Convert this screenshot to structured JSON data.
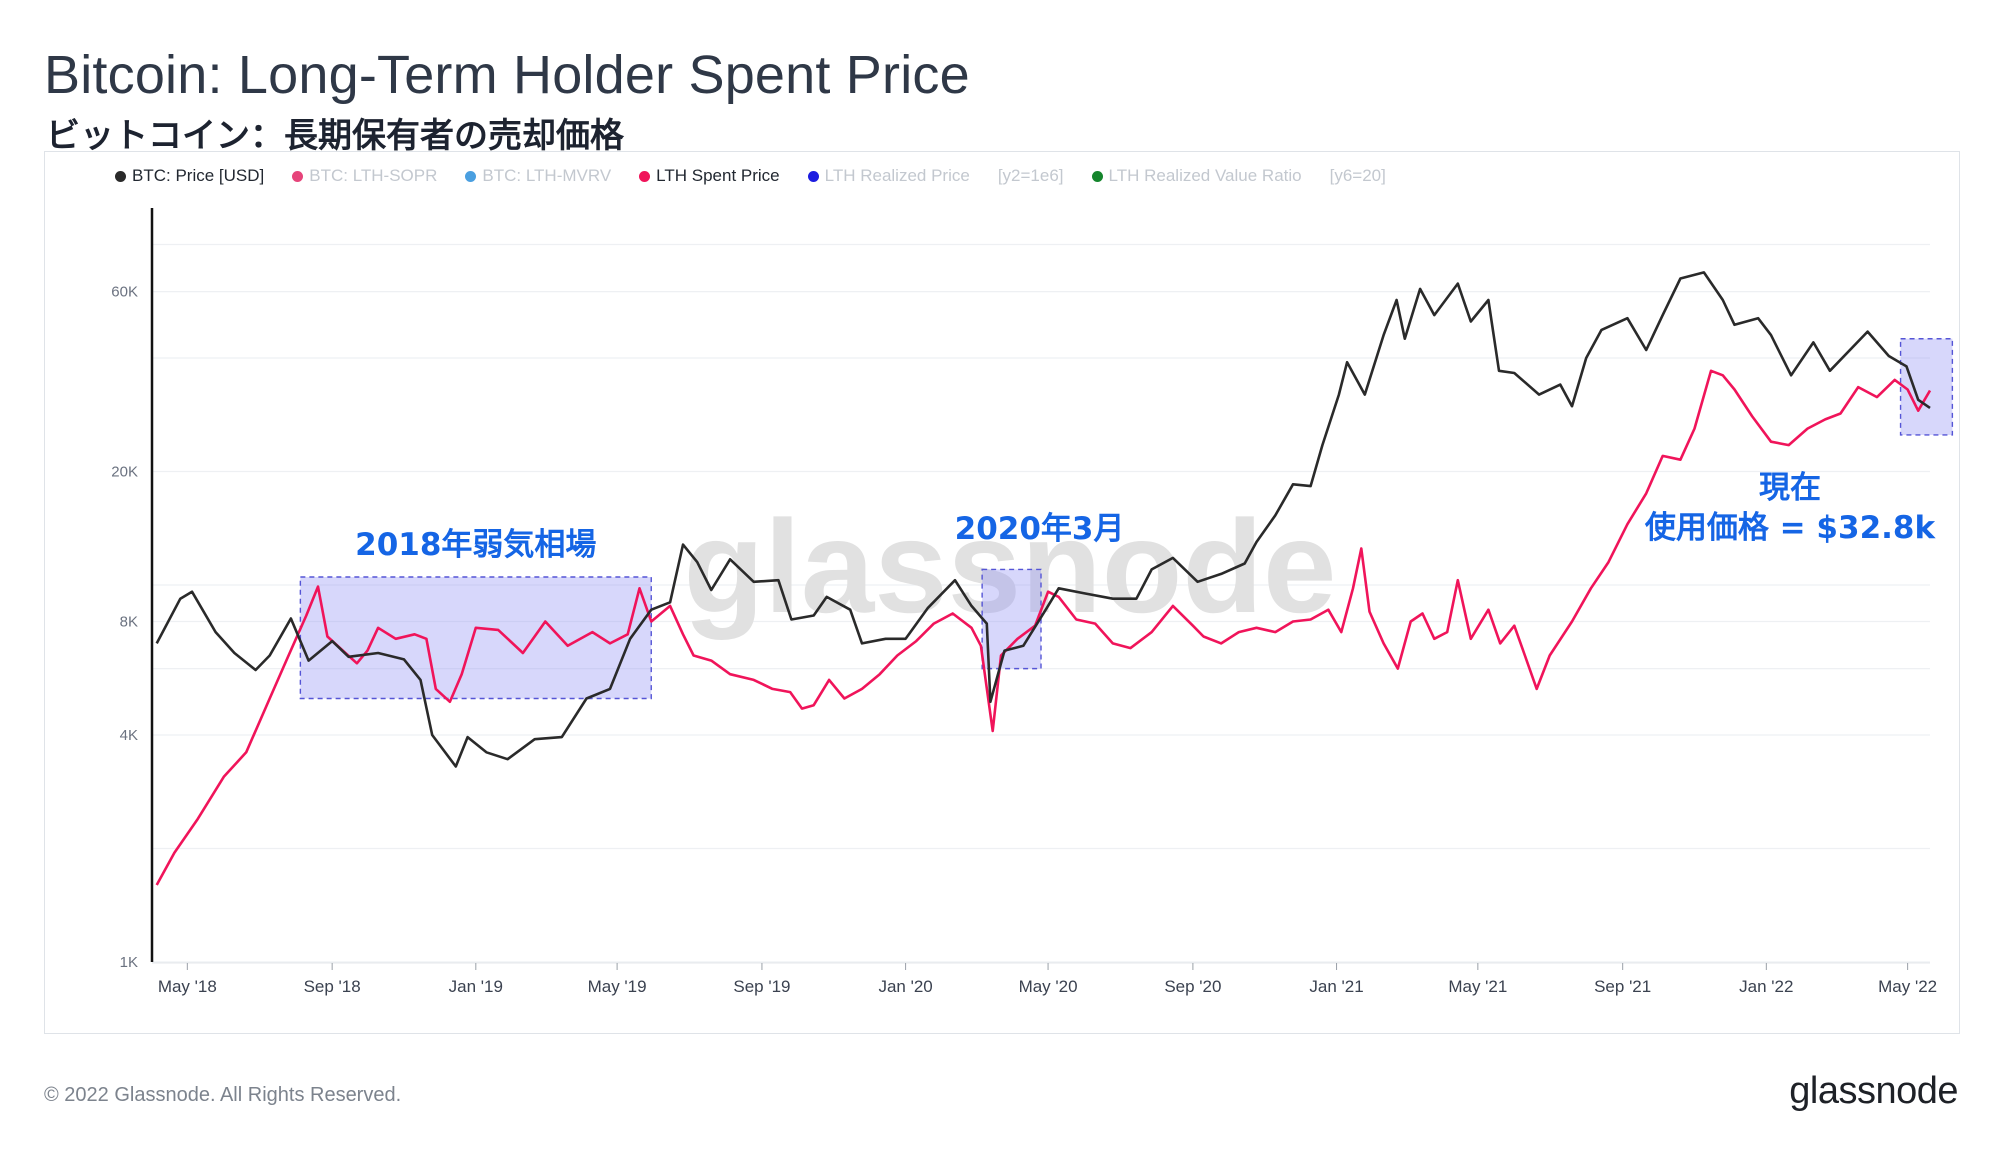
{
  "header": {
    "title": "Bitcoin: Long-Term Holder Spent Price",
    "subtitle": "ビットコイン：長期保有者の売却価格"
  },
  "legend": [
    {
      "label": "BTC: Price [USD]",
      "color": "#2a2a2a",
      "active": true
    },
    {
      "label": "BTC: LTH-SOPR",
      "color": "#e6447a",
      "active": false
    },
    {
      "label": "BTC: LTH-MVRV",
      "color": "#4a9fe0",
      "active": false
    },
    {
      "label": "LTH Spent Price",
      "color": "#f0145a",
      "active": true
    },
    {
      "label": "LTH Realized Price",
      "color": "#1c1ce0",
      "active": false
    },
    {
      "label": "[y2=1e6]",
      "extra": true
    },
    {
      "label": "LTH Realized Value Ratio",
      "color": "#14852c",
      "active": false
    },
    {
      "label": "[y6=20]",
      "extra": true
    }
  ],
  "annotations": {
    "bear_2018": "2018年弱気相場",
    "march_2020": "2020年3月",
    "current_line1": "現在",
    "current_line2": "使用価格 = $32.8k"
  },
  "watermark": "glassnode",
  "footer": {
    "copyright": "© 2022 Glassnode. All Rights Reserved.",
    "brand": "glassnode"
  },
  "chart_data": {
    "type": "line",
    "title": "Bitcoin: Long-Term Holder Spent Price",
    "y_scale": "log",
    "ylim": [
      1000,
      100000
    ],
    "y_ticks": [
      {
        "value": 1000,
        "label": "1K"
      },
      {
        "value": 4000,
        "label": "4K"
      },
      {
        "value": 8000,
        "label": "8K"
      },
      {
        "value": 20000,
        "label": "20K"
      },
      {
        "value": 60000,
        "label": "60K"
      }
    ],
    "x_range": [
      "2018-04-01",
      "2022-05-20"
    ],
    "x_ticks": [
      {
        "date": "2018-05-01",
        "label": "May '18"
      },
      {
        "date": "2018-09-01",
        "label": "Sep '18"
      },
      {
        "date": "2019-01-01",
        "label": "Jan '19"
      },
      {
        "date": "2019-05-01",
        "label": "May '19"
      },
      {
        "date": "2019-09-01",
        "label": "Sep '19"
      },
      {
        "date": "2020-01-01",
        "label": "Jan '20"
      },
      {
        "date": "2020-05-01",
        "label": "May '20"
      },
      {
        "date": "2020-09-01",
        "label": "Sep '20"
      },
      {
        "date": "2021-01-01",
        "label": "Jan '21"
      },
      {
        "date": "2021-05-01",
        "label": "May '21"
      },
      {
        "date": "2021-09-01",
        "label": "Sep '21"
      },
      {
        "date": "2022-01-01",
        "label": "Jan '22"
      },
      {
        "date": "2022-05-01",
        "label": "May '22"
      }
    ],
    "grid": true,
    "legend_position": "top-left",
    "series": [
      {
        "name": "BTC: Price [USD]",
        "color": "#2a2a2a",
        "points": [
          [
            "2018-04-05",
            7000
          ],
          [
            "2018-04-25",
            9200
          ],
          [
            "2018-05-05",
            9600
          ],
          [
            "2018-05-25",
            7500
          ],
          [
            "2018-06-10",
            6600
          ],
          [
            "2018-06-28",
            5950
          ],
          [
            "2018-07-10",
            6500
          ],
          [
            "2018-07-28",
            8150
          ],
          [
            "2018-08-12",
            6300
          ],
          [
            "2018-09-01",
            7100
          ],
          [
            "2018-09-15",
            6450
          ],
          [
            "2018-10-10",
            6600
          ],
          [
            "2018-11-01",
            6350
          ],
          [
            "2018-11-15",
            5600
          ],
          [
            "2018-11-25",
            4000
          ],
          [
            "2018-12-15",
            3300
          ],
          [
            "2018-12-25",
            3950
          ],
          [
            "2019-01-10",
            3600
          ],
          [
            "2019-01-28",
            3450
          ],
          [
            "2019-02-20",
            3900
          ],
          [
            "2019-03-15",
            3950
          ],
          [
            "2019-04-05",
            5000
          ],
          [
            "2019-04-25",
            5300
          ],
          [
            "2019-05-12",
            7200
          ],
          [
            "2019-05-30",
            8600
          ],
          [
            "2019-06-15",
            9000
          ],
          [
            "2019-06-26",
            12800
          ],
          [
            "2019-07-08",
            11500
          ],
          [
            "2019-07-20",
            9700
          ],
          [
            "2019-08-05",
            11700
          ],
          [
            "2019-08-25",
            10200
          ],
          [
            "2019-09-15",
            10300
          ],
          [
            "2019-09-26",
            8100
          ],
          [
            "2019-10-15",
            8300
          ],
          [
            "2019-10-26",
            9300
          ],
          [
            "2019-11-15",
            8600
          ],
          [
            "2019-11-25",
            7000
          ],
          [
            "2019-12-15",
            7200
          ],
          [
            "2020-01-01",
            7200
          ],
          [
            "2020-01-20",
            8700
          ],
          [
            "2020-02-12",
            10300
          ],
          [
            "2020-02-26",
            8800
          ],
          [
            "2020-03-10",
            7900
          ],
          [
            "2020-03-13",
            4900
          ],
          [
            "2020-03-25",
            6700
          ],
          [
            "2020-04-10",
            6900
          ],
          [
            "2020-04-30",
            8700
          ],
          [
            "2020-05-10",
            9800
          ],
          [
            "2020-06-01",
            9500
          ],
          [
            "2020-06-25",
            9200
          ],
          [
            "2020-07-15",
            9200
          ],
          [
            "2020-07-28",
            11000
          ],
          [
            "2020-08-15",
            11800
          ],
          [
            "2020-09-05",
            10200
          ],
          [
            "2020-09-25",
            10700
          ],
          [
            "2020-10-15",
            11400
          ],
          [
            "2020-10-25",
            13000
          ],
          [
            "2020-11-10",
            15300
          ],
          [
            "2020-11-25",
            18500
          ],
          [
            "2020-12-10",
            18300
          ],
          [
            "2020-12-20",
            23500
          ],
          [
            "2021-01-03",
            32000
          ],
          [
            "2021-01-10",
            39000
          ],
          [
            "2021-01-25",
            32000
          ],
          [
            "2021-02-10",
            46000
          ],
          [
            "2021-02-21",
            57000
          ],
          [
            "2021-02-28",
            45000
          ],
          [
            "2021-03-13",
            61000
          ],
          [
            "2021-03-25",
            52000
          ],
          [
            "2021-04-14",
            63000
          ],
          [
            "2021-04-25",
            50000
          ],
          [
            "2021-05-10",
            57000
          ],
          [
            "2021-05-19",
            37000
          ],
          [
            "2021-06-01",
            36500
          ],
          [
            "2021-06-22",
            32000
          ],
          [
            "2021-07-10",
            34000
          ],
          [
            "2021-07-20",
            29800
          ],
          [
            "2021-08-01",
            40000
          ],
          [
            "2021-08-14",
            47500
          ],
          [
            "2021-09-05",
            51000
          ],
          [
            "2021-09-21",
            42000
          ],
          [
            "2021-10-05",
            52000
          ],
          [
            "2021-10-20",
            65000
          ],
          [
            "2021-11-09",
            67500
          ],
          [
            "2021-11-25",
            57000
          ],
          [
            "2021-12-05",
            49000
          ],
          [
            "2021-12-25",
            51000
          ],
          [
            "2022-01-05",
            46000
          ],
          [
            "2022-01-22",
            36000
          ],
          [
            "2022-02-10",
            44000
          ],
          [
            "2022-02-24",
            37000
          ],
          [
            "2022-03-28",
            47000
          ],
          [
            "2022-04-15",
            40500
          ],
          [
            "2022-04-30",
            38000
          ],
          [
            "2022-05-10",
            31000
          ],
          [
            "2022-05-20",
            29500
          ]
        ]
      },
      {
        "name": "LTH Spent Price",
        "color": "#f0145a",
        "points": [
          [
            "2018-04-05",
            1600
          ],
          [
            "2018-04-20",
            1950
          ],
          [
            "2018-05-10",
            2400
          ],
          [
            "2018-06-01",
            3100
          ],
          [
            "2018-06-20",
            3600
          ],
          [
            "2018-07-10",
            5000
          ],
          [
            "2018-07-25",
            6400
          ],
          [
            "2018-08-10",
            8300
          ],
          [
            "2018-08-20",
            9900
          ],
          [
            "2018-08-28",
            7300
          ],
          [
            "2018-09-10",
            6700
          ],
          [
            "2018-09-22",
            6200
          ],
          [
            "2018-10-01",
            6700
          ],
          [
            "2018-10-10",
            7700
          ],
          [
            "2018-10-25",
            7200
          ],
          [
            "2018-11-10",
            7400
          ],
          [
            "2018-11-20",
            7200
          ],
          [
            "2018-11-28",
            5300
          ],
          [
            "2018-12-10",
            4900
          ],
          [
            "2018-12-20",
            5800
          ],
          [
            "2019-01-01",
            7700
          ],
          [
            "2019-01-20",
            7600
          ],
          [
            "2019-02-10",
            6600
          ],
          [
            "2019-03-01",
            8000
          ],
          [
            "2019-03-20",
            6900
          ],
          [
            "2019-04-10",
            7500
          ],
          [
            "2019-04-25",
            7000
          ],
          [
            "2019-05-10",
            7400
          ],
          [
            "2019-05-20",
            9800
          ],
          [
            "2019-05-30",
            8000
          ],
          [
            "2019-06-15",
            8800
          ],
          [
            "2019-06-26",
            7400
          ],
          [
            "2019-07-05",
            6500
          ],
          [
            "2019-07-20",
            6300
          ],
          [
            "2019-08-05",
            5800
          ],
          [
            "2019-08-25",
            5600
          ],
          [
            "2019-09-10",
            5300
          ],
          [
            "2019-09-25",
            5200
          ],
          [
            "2019-10-05",
            4700
          ],
          [
            "2019-10-15",
            4800
          ],
          [
            "2019-10-28",
            5600
          ],
          [
            "2019-11-10",
            5000
          ],
          [
            "2019-11-25",
            5300
          ],
          [
            "2019-12-10",
            5800
          ],
          [
            "2019-12-25",
            6500
          ],
          [
            "2020-01-10",
            7100
          ],
          [
            "2020-01-25",
            7900
          ],
          [
            "2020-02-10",
            8400
          ],
          [
            "2020-02-26",
            7700
          ],
          [
            "2020-03-05",
            6900
          ],
          [
            "2020-03-15",
            4100
          ],
          [
            "2020-03-22",
            6500
          ],
          [
            "2020-04-05",
            7200
          ],
          [
            "2020-04-20",
            7800
          ],
          [
            "2020-05-01",
            9600
          ],
          [
            "2020-05-10",
            9300
          ],
          [
            "2020-05-25",
            8100
          ],
          [
            "2020-06-10",
            7900
          ],
          [
            "2020-06-25",
            7000
          ],
          [
            "2020-07-10",
            6800
          ],
          [
            "2020-07-28",
            7500
          ],
          [
            "2020-08-15",
            8800
          ],
          [
            "2020-09-01",
            7800
          ],
          [
            "2020-09-10",
            7300
          ],
          [
            "2020-09-25",
            7000
          ],
          [
            "2020-10-10",
            7500
          ],
          [
            "2020-10-25",
            7700
          ],
          [
            "2020-11-10",
            7500
          ],
          [
            "2020-11-25",
            8000
          ],
          [
            "2020-12-10",
            8100
          ],
          [
            "2020-12-25",
            8600
          ],
          [
            "2021-01-05",
            7500
          ],
          [
            "2021-01-15",
            9800
          ],
          [
            "2021-01-22",
            12500
          ],
          [
            "2021-01-29",
            8500
          ],
          [
            "2021-02-10",
            7000
          ],
          [
            "2021-02-22",
            6000
          ],
          [
            "2021-03-05",
            8000
          ],
          [
            "2021-03-15",
            8400
          ],
          [
            "2021-03-25",
            7200
          ],
          [
            "2021-04-05",
            7500
          ],
          [
            "2021-04-14",
            10300
          ],
          [
            "2021-04-25",
            7200
          ],
          [
            "2021-05-10",
            8600
          ],
          [
            "2021-05-20",
            7000
          ],
          [
            "2021-06-01",
            7800
          ],
          [
            "2021-06-10",
            6500
          ],
          [
            "2021-06-20",
            5300
          ],
          [
            "2021-07-01",
            6500
          ],
          [
            "2021-07-20",
            8000
          ],
          [
            "2021-08-05",
            9800
          ],
          [
            "2021-08-20",
            11500
          ],
          [
            "2021-09-05",
            14500
          ],
          [
            "2021-09-21",
            17500
          ],
          [
            "2021-10-05",
            22000
          ],
          [
            "2021-10-20",
            21500
          ],
          [
            "2021-11-01",
            26000
          ],
          [
            "2021-11-15",
            37000
          ],
          [
            "2021-11-25",
            36000
          ],
          [
            "2021-12-05",
            33000
          ],
          [
            "2021-12-20",
            28000
          ],
          [
            "2022-01-05",
            24000
          ],
          [
            "2022-01-20",
            23500
          ],
          [
            "2022-02-05",
            26000
          ],
          [
            "2022-02-20",
            27500
          ],
          [
            "2022-03-05",
            28500
          ],
          [
            "2022-03-20",
            33500
          ],
          [
            "2022-04-05",
            31500
          ],
          [
            "2022-04-20",
            35000
          ],
          [
            "2022-05-01",
            33000
          ],
          [
            "2022-05-10",
            29000
          ],
          [
            "2022-05-20",
            32800
          ]
        ]
      }
    ],
    "highlight_regions": [
      {
        "label": "2018年弱気相場",
        "x": [
          "2018-08-05",
          "2019-05-30"
        ],
        "y": [
          5000,
          10500
        ]
      },
      {
        "label": "2020年3月",
        "x": [
          "2020-03-06",
          "2020-04-25"
        ],
        "y": [
          6000,
          11000
        ]
      },
      {
        "label": "現在 使用価格 = $32.8k",
        "x": [
          "2022-04-25",
          "2022-06-08"
        ],
        "y": [
          25000,
          45000
        ]
      }
    ]
  }
}
